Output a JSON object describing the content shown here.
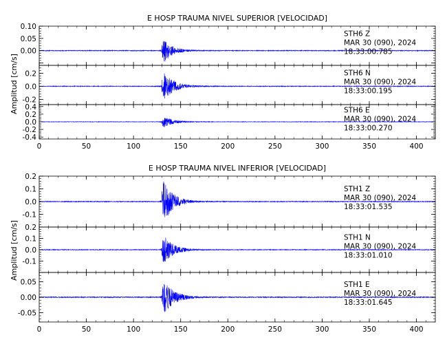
{
  "colors": {
    "trace": "#0000ff",
    "axis": "#000000",
    "background": "#ffffff"
  },
  "chart_data": [
    {
      "type": "line",
      "title": "E HOSP TRAUMA NIVEL SUPERIOR [VELOCIDAD]",
      "ylabel": "Amplitud [cm/s]",
      "xlim": [
        0,
        420
      ],
      "x_ticks": [
        0,
        50,
        100,
        150,
        200,
        250,
        300,
        350,
        400
      ],
      "x_tick_labels": [
        "0",
        "50",
        "100",
        "150",
        "200",
        "250",
        "300",
        "350",
        "400"
      ],
      "panels": [
        {
          "station": "STH6",
          "component": "Z",
          "date": "MAR 30 (090), 2024",
          "time": "18:33:00.785",
          "ylim": [
            -0.06,
            0.1
          ],
          "y_ticks": [
            -0.05,
            0.0,
            0.05,
            0.1
          ],
          "y_tick_labels": [
            "",
            "0.00",
            "0.05",
            "0.10"
          ],
          "envelope": {
            "noise": 0.0015,
            "onset": 130,
            "peak": 0.05,
            "decay": 9
          }
        },
        {
          "station": "STH6",
          "component": "N",
          "date": "MAR 30 (090), 2024",
          "time": "18:33:00.195",
          "ylim": [
            -0.28,
            0.32
          ],
          "y_ticks": [
            -0.2,
            0.0,
            0.2
          ],
          "y_tick_labels": [
            "-0.2",
            "0.0",
            "0.2"
          ],
          "envelope": {
            "noise": 0.005,
            "onset": 130,
            "peak": 0.22,
            "decay": 11
          }
        },
        {
          "station": "STH6",
          "component": "E",
          "date": "MAR 30 (090), 2024",
          "time": "18:33:00.270",
          "ylim": [
            -0.45,
            0.45
          ],
          "y_ticks": [
            -0.4,
            -0.2,
            0.0,
            0.2,
            0.4
          ],
          "y_tick_labels": [
            "-0.4",
            "-0.2",
            "0.0",
            "0.2",
            "0.4"
          ],
          "envelope": {
            "noise": 0.006,
            "onset": 130,
            "peak": 0.15,
            "decay": 10
          }
        }
      ]
    },
    {
      "type": "line",
      "title": "E HOSP TRAUMA NIVEL INFERIOR [VELOCIDAD]",
      "ylabel": "Amplitud [cm/s]",
      "xlim": [
        0,
        420
      ],
      "x_ticks": [
        0,
        50,
        100,
        150,
        200,
        250,
        300,
        350,
        400
      ],
      "x_tick_labels": [
        "0",
        "50",
        "100",
        "150",
        "200",
        "250",
        "300",
        "350",
        "400"
      ],
      "panels": [
        {
          "station": "STH1",
          "component": "Z",
          "date": "MAR 30 (090), 2024",
          "time": "18:33:01.535",
          "ylim": [
            -0.2,
            0.2
          ],
          "y_ticks": [
            -0.2,
            -0.1,
            0.0,
            0.1,
            0.2
          ],
          "y_tick_labels": [
            "",
            "-0.1",
            "0.0",
            "0.1",
            "0.2"
          ],
          "envelope": {
            "noise": 0.003,
            "onset": 130,
            "peak": 0.17,
            "decay": 10
          }
        },
        {
          "station": "STH1",
          "component": "N",
          "date": "MAR 30 (090), 2024",
          "time": "18:33:01.010",
          "ylim": [
            -0.2,
            0.2
          ],
          "y_ticks": [
            -0.2,
            -0.1,
            0.0,
            0.1,
            0.2
          ],
          "y_tick_labels": [
            "",
            "-0.1",
            "0.0",
            "0.1",
            "0.2"
          ],
          "envelope": {
            "noise": 0.003,
            "onset": 130,
            "peak": 0.13,
            "decay": 10
          }
        },
        {
          "station": "STH1",
          "component": "E",
          "date": "MAR 30 (090), 2024",
          "time": "18:33:01.645",
          "ylim": [
            -0.08,
            0.08
          ],
          "y_ticks": [
            -0.05,
            0.0,
            0.05
          ],
          "y_tick_labels": [
            "-0.05",
            "0.00",
            "0.05"
          ],
          "envelope": {
            "noise": 0.0015,
            "onset": 130,
            "peak": 0.055,
            "decay": 11
          }
        }
      ]
    }
  ]
}
